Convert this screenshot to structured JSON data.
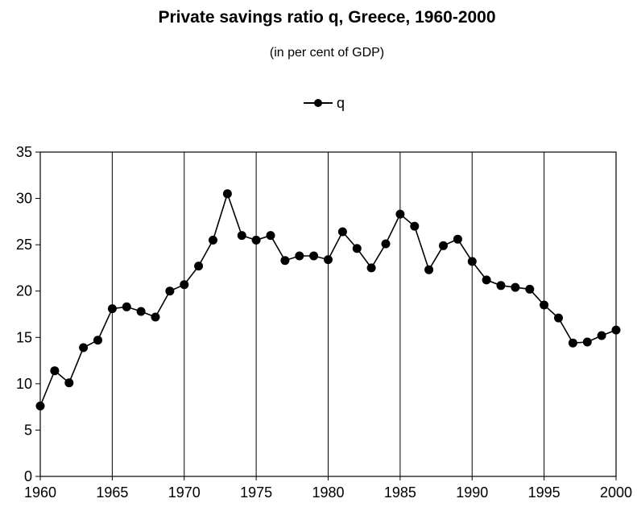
{
  "chart_data": {
    "type": "line",
    "title": "Private savings ratio q, Greece, 1960-2000",
    "subtitle": "(in per cent of GDP)",
    "xlabel": "",
    "ylabel": "",
    "xlim": [
      1960,
      2000
    ],
    "ylim": [
      0,
      35
    ],
    "x_ticks": [
      "1960",
      "1965",
      "1970",
      "1975",
      "1980",
      "1985",
      "1990",
      "1995",
      "2000"
    ],
    "y_ticks": [
      "0",
      "5",
      "10",
      "15",
      "20",
      "25",
      "30",
      "35"
    ],
    "grid": "vertical",
    "legend_position": "top-center",
    "colors": {
      "line": "#000000",
      "marker": "#000000"
    },
    "series": [
      {
        "name": "q",
        "x": [
          1960,
          1961,
          1962,
          1963,
          1964,
          1965,
          1966,
          1967,
          1968,
          1969,
          1970,
          1971,
          1972,
          1973,
          1974,
          1975,
          1976,
          1977,
          1978,
          1979,
          1980,
          1981,
          1982,
          1983,
          1984,
          1985,
          1986,
          1987,
          1988,
          1989,
          1990,
          1991,
          1992,
          1993,
          1994,
          1995,
          1996,
          1997,
          1998,
          1999,
          2000
        ],
        "values": [
          7.6,
          11.4,
          10.1,
          13.9,
          14.7,
          18.1,
          18.3,
          17.8,
          17.2,
          20.0,
          20.7,
          22.7,
          25.5,
          30.5,
          26.0,
          25.5,
          26.0,
          23.3,
          23.8,
          23.8,
          23.4,
          26.4,
          24.6,
          22.5,
          25.1,
          28.3,
          27.0,
          22.3,
          24.9,
          25.6,
          23.2,
          21.2,
          20.6,
          20.4,
          20.2,
          18.5,
          17.1,
          14.4,
          14.5,
          15.2,
          15.8
        ]
      }
    ]
  }
}
